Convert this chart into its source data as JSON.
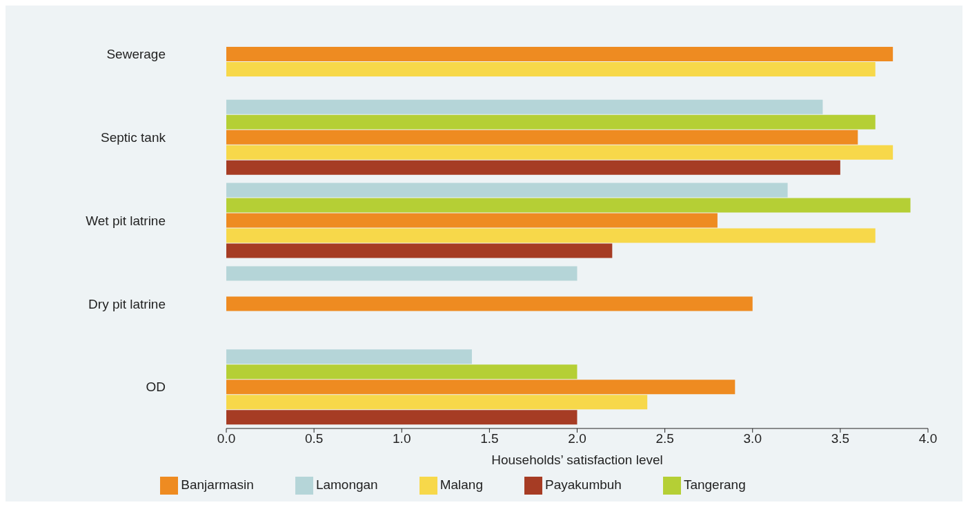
{
  "chart_data": {
    "type": "bar",
    "orientation": "horizontal",
    "xlabel": "Households’ satisfaction level",
    "categories": [
      "Sewerage",
      "Septic tank",
      "Wet pit latrine",
      "Dry pit latrine",
      "OD"
    ],
    "series": [
      {
        "name": "Lamongan",
        "color": "#b5d5d8",
        "values": [
          null,
          3.4,
          3.2,
          2.0,
          1.4
        ]
      },
      {
        "name": "Tangerang",
        "color": "#b5cf35",
        "values": [
          null,
          3.7,
          3.9,
          null,
          2.0
        ]
      },
      {
        "name": "Banjarmasin",
        "color": "#ee8b21",
        "values": [
          3.8,
          3.6,
          2.8,
          3.0,
          2.9
        ]
      },
      {
        "name": "Malang",
        "color": "#f7d84a",
        "values": [
          3.7,
          3.8,
          3.7,
          null,
          2.4
        ]
      },
      {
        "name": "Payakumbuh",
        "color": "#a63c24",
        "values": [
          null,
          3.5,
          2.2,
          null,
          2.0
        ]
      }
    ],
    "xlim": [
      0,
      4
    ],
    "xticks": [
      {
        "value": 0,
        "label": "0.0"
      },
      {
        "value": 0.5,
        "label": "0.5"
      },
      {
        "value": 1,
        "label": "1.0"
      },
      {
        "value": 1.5,
        "label": "1.5"
      },
      {
        "value": 2,
        "label": "2.0"
      },
      {
        "value": 2.5,
        "label": "2.5"
      },
      {
        "value": 3,
        "label": "3.0"
      },
      {
        "value": 3.5,
        "label": "3.5"
      },
      {
        "value": 4,
        "label": "4.0"
      }
    ],
    "grid": false,
    "legend": "bottom"
  }
}
